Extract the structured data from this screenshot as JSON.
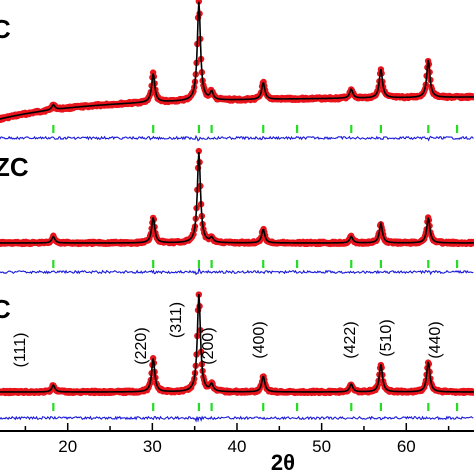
{
  "chart_data": {
    "type": "line",
    "xlabel": "2θ",
    "ylabel": "",
    "xlim": [
      12,
      68
    ],
    "x_ticks": [
      "20",
      "30",
      "40",
      "50",
      "60"
    ],
    "x_tick_values": [
      20,
      30,
      40,
      50,
      60
    ],
    "panels": [
      {
        "label": "C",
        "peaks": [
          {
            "two_theta": 18.3,
            "intensity": 0.05
          },
          {
            "two_theta": 30.1,
            "intensity": 0.29
          },
          {
            "two_theta": 35.5,
            "intensity": 1.0
          },
          {
            "two_theta": 37.0,
            "intensity": 0.08
          },
          {
            "two_theta": 43.1,
            "intensity": 0.17
          },
          {
            "two_theta": 53.5,
            "intensity": 0.09
          },
          {
            "two_theta": 57.0,
            "intensity": 0.29
          },
          {
            "two_theta": 62.6,
            "intensity": 0.38
          }
        ]
      },
      {
        "label": "ZC",
        "peaks": [
          {
            "two_theta": 18.3,
            "intensity": 0.07
          },
          {
            "two_theta": 30.1,
            "intensity": 0.28
          },
          {
            "two_theta": 35.5,
            "intensity": 1.0
          },
          {
            "two_theta": 37.0,
            "intensity": 0.05
          },
          {
            "two_theta": 43.1,
            "intensity": 0.15
          },
          {
            "two_theta": 53.5,
            "intensity": 0.07
          },
          {
            "two_theta": 57.0,
            "intensity": 0.21
          },
          {
            "two_theta": 62.6,
            "intensity": 0.28
          }
        ]
      },
      {
        "label": "C",
        "peaks": [
          {
            "two_theta": 18.3,
            "intensity": 0.07
          },
          {
            "two_theta": 30.1,
            "intensity": 0.34
          },
          {
            "two_theta": 35.5,
            "intensity": 1.0
          },
          {
            "two_theta": 37.0,
            "intensity": 0.07
          },
          {
            "two_theta": 43.1,
            "intensity": 0.16
          },
          {
            "two_theta": 53.5,
            "intensity": 0.08
          },
          {
            "two_theta": 57.0,
            "intensity": 0.28
          },
          {
            "two_theta": 62.6,
            "intensity": 0.31
          }
        ]
      }
    ],
    "reflections": [
      {
        "hkl": "(111)",
        "two_theta": 18.3
      },
      {
        "hkl": "(220)",
        "two_theta": 30.1
      },
      {
        "hkl": "(311)",
        "two_theta": 35.5
      },
      {
        "hkl": "(200)",
        "two_theta": 37.0
      },
      {
        "hkl": "(400)",
        "two_theta": 43.1
      },
      {
        "hkl": "",
        "two_theta": 47.1
      },
      {
        "hkl": "(422)",
        "two_theta": 53.5
      },
      {
        "hkl": "(510)",
        "two_theta": 57.0
      },
      {
        "hkl": "(440)",
        "two_theta": 62.6
      },
      {
        "hkl": "",
        "two_theta": 66.0
      }
    ],
    "series": [
      {
        "name": "",
        "role": "observed",
        "color": "#e8141c"
      },
      {
        "name": "",
        "role": "calculated",
        "color": "#000000"
      },
      {
        "name": "",
        "role": "difference",
        "color": "#1a1ad8"
      },
      {
        "name": "",
        "role": "bragg positions",
        "color": "#22dd22"
      }
    ],
    "grid": false,
    "legend": "none"
  }
}
